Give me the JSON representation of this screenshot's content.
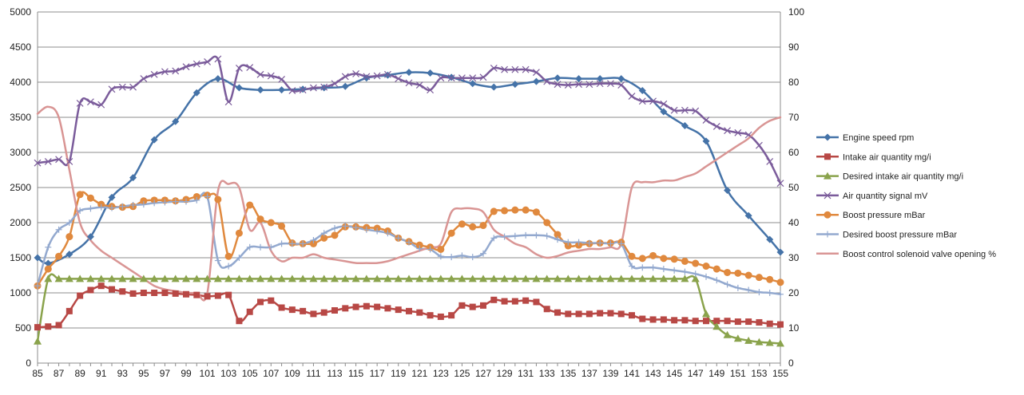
{
  "chart_data": {
    "type": "line",
    "title": "",
    "xlabel": "",
    "ylabel": "",
    "x": [
      85,
      86,
      87,
      88,
      89,
      90,
      91,
      92,
      93,
      94,
      95,
      96,
      97,
      98,
      99,
      100,
      101,
      102,
      103,
      104,
      105,
      106,
      107,
      108,
      109,
      110,
      111,
      112,
      113,
      114,
      115,
      116,
      117,
      118,
      119,
      120,
      121,
      122,
      123,
      124,
      125,
      126,
      127,
      128,
      129,
      130,
      131,
      132,
      133,
      134,
      135,
      136,
      137,
      138,
      139,
      140,
      141,
      142,
      143,
      144,
      145,
      146,
      147,
      148,
      149,
      150,
      151,
      152,
      153,
      154,
      155
    ],
    "x_ticks": [
      85,
      87,
      89,
      91,
      93,
      95,
      97,
      99,
      101,
      103,
      105,
      107,
      109,
      111,
      113,
      115,
      117,
      119,
      121,
      123,
      125,
      127,
      129,
      131,
      133,
      135,
      137,
      139,
      141,
      143,
      145,
      147,
      149,
      151,
      153,
      155
    ],
    "xlim": [
      85,
      155
    ],
    "ylim_left": [
      0,
      5000
    ],
    "y_ticks_left": [
      0,
      500,
      1000,
      1500,
      2000,
      2500,
      3000,
      3500,
      4000,
      4500,
      5000
    ],
    "ylim_right": [
      0,
      100
    ],
    "y_ticks_right": [
      0,
      10,
      20,
      30,
      40,
      50,
      60,
      70,
      80,
      90,
      100
    ],
    "grid": "horizontal",
    "legend_position": "right",
    "series": [
      {
        "name": "Engine speed rpm",
        "axis": "left",
        "color": "#4573a8",
        "marker": "diamond",
        "x": [
          85,
          86,
          88,
          90,
          92,
          94,
          96,
          98,
          100,
          102,
          104,
          106,
          108,
          110,
          112,
          114,
          116,
          118,
          120,
          122,
          124,
          126,
          128,
          130,
          132,
          134,
          136,
          138,
          140,
          142,
          144,
          146,
          148,
          150,
          152,
          154,
          155
        ],
        "values": [
          1500,
          1420,
          1550,
          1800,
          2360,
          2640,
          3180,
          3440,
          3850,
          4050,
          3920,
          3890,
          3890,
          3900,
          3920,
          3940,
          4060,
          4100,
          4140,
          4130,
          4070,
          3980,
          3930,
          3970,
          4010,
          4060,
          4050,
          4050,
          4050,
          3880,
          3580,
          3380,
          3160,
          2460,
          2100,
          1760,
          1580
        ]
      },
      {
        "name": "Intake air quantity mg/i",
        "axis": "left",
        "color": "#b84845",
        "marker": "square",
        "x": [
          85,
          86,
          87,
          88,
          89,
          90,
          91,
          92,
          93,
          94,
          95,
          96,
          97,
          98,
          99,
          100,
          101,
          102,
          103,
          104,
          105,
          106,
          107,
          108,
          109,
          110,
          111,
          112,
          113,
          114,
          115,
          116,
          117,
          118,
          119,
          120,
          121,
          122,
          123,
          124,
          125,
          126,
          127,
          128,
          129,
          130,
          131,
          132,
          133,
          134,
          135,
          136,
          137,
          138,
          139,
          140,
          141,
          142,
          143,
          144,
          145,
          146,
          147,
          148,
          149,
          150,
          151,
          152,
          153,
          154,
          155
        ],
        "values": [
          510,
          520,
          540,
          740,
          960,
          1040,
          1100,
          1050,
          1020,
          990,
          1000,
          1000,
          1000,
          990,
          980,
          970,
          950,
          960,
          970,
          600,
          730,
          870,
          890,
          790,
          760,
          740,
          700,
          720,
          750,
          780,
          800,
          810,
          800,
          780,
          760,
          740,
          720,
          680,
          660,
          680,
          820,
          800,
          820,
          900,
          880,
          880,
          890,
          870,
          770,
          720,
          700,
          700,
          700,
          710,
          710,
          700,
          680,
          630,
          620,
          620,
          610,
          610,
          600,
          600,
          600,
          600,
          590,
          590,
          580,
          560,
          550
        ]
      },
      {
        "name": "Desired intake air quantity mg/i",
        "axis": "left",
        "color": "#8aa34c",
        "marker": "triangle",
        "x": [
          85,
          86,
          87,
          88,
          89,
          90,
          91,
          92,
          93,
          94,
          95,
          96,
          97,
          98,
          99,
          100,
          101,
          102,
          103,
          104,
          105,
          106,
          107,
          108,
          109,
          110,
          111,
          112,
          113,
          114,
          115,
          116,
          117,
          118,
          119,
          120,
          121,
          122,
          123,
          124,
          125,
          126,
          127,
          128,
          129,
          130,
          131,
          132,
          133,
          134,
          135,
          136,
          137,
          138,
          139,
          140,
          141,
          142,
          143,
          144,
          145,
          146,
          147,
          148,
          149,
          150,
          151,
          152,
          153,
          154,
          155
        ],
        "values": [
          310,
          1200,
          1200,
          1200,
          1200,
          1200,
          1200,
          1200,
          1200,
          1200,
          1200,
          1200,
          1200,
          1200,
          1200,
          1200,
          1200,
          1200,
          1200,
          1200,
          1200,
          1200,
          1200,
          1200,
          1200,
          1200,
          1200,
          1200,
          1200,
          1200,
          1200,
          1200,
          1200,
          1200,
          1200,
          1200,
          1200,
          1200,
          1200,
          1200,
          1200,
          1200,
          1200,
          1200,
          1200,
          1200,
          1200,
          1200,
          1200,
          1200,
          1200,
          1200,
          1200,
          1200,
          1200,
          1200,
          1200,
          1200,
          1200,
          1200,
          1200,
          1200,
          1200,
          700,
          520,
          400,
          350,
          320,
          300,
          290,
          280
        ]
      },
      {
        "name": "Air quantity signal mV",
        "axis": "left",
        "color": "#7b5c9b",
        "marker": "x",
        "x": [
          85,
          86,
          87,
          88,
          89,
          90,
          91,
          92,
          93,
          94,
          95,
          96,
          97,
          98,
          99,
          100,
          101,
          102,
          103,
          104,
          105,
          106,
          107,
          108,
          109,
          110,
          111,
          112,
          113,
          114,
          115,
          116,
          117,
          118,
          119,
          120,
          121,
          122,
          123,
          124,
          125,
          126,
          127,
          128,
          129,
          130,
          131,
          132,
          133,
          134,
          135,
          136,
          137,
          138,
          139,
          140,
          141,
          142,
          143,
          144,
          145,
          146,
          147,
          148,
          149,
          150,
          151,
          152,
          153,
          154,
          155
        ],
        "values": [
          2850,
          2870,
          2900,
          2870,
          3700,
          3720,
          3680,
          3900,
          3930,
          3930,
          4050,
          4110,
          4150,
          4160,
          4220,
          4260,
          4290,
          4330,
          3720,
          4200,
          4210,
          4110,
          4090,
          4040,
          3880,
          3890,
          3920,
          3930,
          3980,
          4080,
          4120,
          4080,
          4090,
          4110,
          4050,
          3990,
          3960,
          3890,
          4060,
          4060,
          4060,
          4060,
          4070,
          4200,
          4180,
          4180,
          4180,
          4140,
          4010,
          3970,
          3960,
          3970,
          3970,
          3980,
          3980,
          3960,
          3800,
          3730,
          3730,
          3690,
          3600,
          3600,
          3590,
          3460,
          3370,
          3310,
          3280,
          3250,
          3100,
          2870,
          2560
        ]
      },
      {
        "name": "Boost pressure mBar",
        "axis": "left",
        "color": "#e0893e",
        "marker": "circle",
        "x": [
          85,
          86,
          87,
          88,
          89,
          90,
          91,
          92,
          93,
          94,
          95,
          96,
          97,
          98,
          99,
          100,
          101,
          102,
          103,
          104,
          105,
          106,
          107,
          108,
          109,
          110,
          111,
          112,
          113,
          114,
          115,
          116,
          117,
          118,
          119,
          120,
          121,
          122,
          123,
          124,
          125,
          126,
          127,
          128,
          129,
          130,
          131,
          132,
          133,
          134,
          135,
          136,
          137,
          138,
          139,
          140,
          141,
          142,
          143,
          144,
          145,
          146,
          147,
          148,
          149,
          150,
          151,
          152,
          153,
          154,
          155
        ],
        "values": [
          1100,
          1340,
          1520,
          1800,
          2400,
          2350,
          2260,
          2230,
          2220,
          2230,
          2310,
          2320,
          2320,
          2310,
          2330,
          2370,
          2390,
          2330,
          1520,
          1850,
          2250,
          2050,
          2000,
          1950,
          1710,
          1700,
          1700,
          1780,
          1820,
          1940,
          1940,
          1930,
          1920,
          1880,
          1780,
          1730,
          1680,
          1650,
          1620,
          1850,
          1980,
          1940,
          1960,
          2160,
          2170,
          2180,
          2180,
          2150,
          2000,
          1830,
          1670,
          1680,
          1700,
          1710,
          1710,
          1720,
          1520,
          1490,
          1530,
          1490,
          1480,
          1450,
          1420,
          1380,
          1340,
          1290,
          1280,
          1250,
          1220,
          1190,
          1150
        ]
      },
      {
        "name": "Desired boost pressure mBar",
        "axis": "left",
        "color": "#93a9cf",
        "marker": "plus",
        "x": [
          85,
          86,
          87,
          88,
          89,
          90,
          91,
          92,
          93,
          94,
          95,
          96,
          97,
          98,
          99,
          100,
          101,
          102,
          103,
          104,
          105,
          106,
          107,
          108,
          109,
          110,
          111,
          112,
          113,
          114,
          115,
          116,
          117,
          118,
          119,
          120,
          121,
          122,
          123,
          124,
          125,
          126,
          127,
          128,
          129,
          130,
          131,
          132,
          133,
          134,
          135,
          136,
          137,
          138,
          139,
          140,
          141,
          142,
          143,
          144,
          145,
          146,
          147,
          148,
          149,
          150,
          151,
          152,
          153,
          154,
          155
        ],
        "values": [
          1100,
          1650,
          1900,
          2000,
          2170,
          2200,
          2220,
          2210,
          2230,
          2250,
          2260,
          2280,
          2290,
          2300,
          2300,
          2320,
          2370,
          1460,
          1380,
          1500,
          1650,
          1650,
          1650,
          1700,
          1700,
          1700,
          1750,
          1850,
          1920,
          1950,
          1930,
          1900,
          1880,
          1850,
          1780,
          1720,
          1630,
          1620,
          1520,
          1510,
          1530,
          1510,
          1560,
          1780,
          1800,
          1810,
          1820,
          1820,
          1810,
          1760,
          1720,
          1720,
          1710,
          1710,
          1700,
          1700,
          1380,
          1360,
          1360,
          1340,
          1320,
          1300,
          1270,
          1230,
          1180,
          1120,
          1070,
          1040,
          1010,
          1000,
          980
        ]
      },
      {
        "name": "Boost control solenoid valve opening %",
        "axis": "right",
        "color": "#d99594",
        "marker": "none",
        "x": [
          85,
          86,
          87,
          88,
          89,
          90,
          91,
          92,
          93,
          94,
          95,
          96,
          97,
          98,
          99,
          100,
          101,
          102,
          103,
          104,
          105,
          106,
          107,
          108,
          109,
          110,
          111,
          112,
          113,
          114,
          115,
          116,
          117,
          118,
          119,
          120,
          121,
          122,
          123,
          124,
          125,
          126,
          127,
          128,
          129,
          130,
          131,
          132,
          133,
          134,
          135,
          136,
          137,
          138,
          139,
          140,
          141,
          142,
          143,
          144,
          145,
          146,
          147,
          148,
          149,
          150,
          151,
          152,
          153,
          154,
          155
        ],
        "values": [
          71,
          73,
          70,
          55,
          40,
          35,
          32,
          30,
          28,
          26,
          24,
          22,
          21,
          20.5,
          20,
          20,
          20,
          49,
          51,
          50,
          38,
          40,
          32,
          29,
          30,
          30,
          31,
          30,
          29.5,
          29,
          28.5,
          28.5,
          28.5,
          29,
          30,
          31,
          32,
          33,
          34,
          43,
          44,
          44,
          43,
          38,
          36,
          34,
          33,
          31,
          30,
          30.5,
          31.5,
          32,
          32.5,
          32.5,
          33,
          34,
          50,
          51.5,
          51.5,
          52,
          52,
          53,
          54,
          56,
          58,
          60,
          62,
          64,
          67,
          69,
          70
        ]
      }
    ]
  }
}
